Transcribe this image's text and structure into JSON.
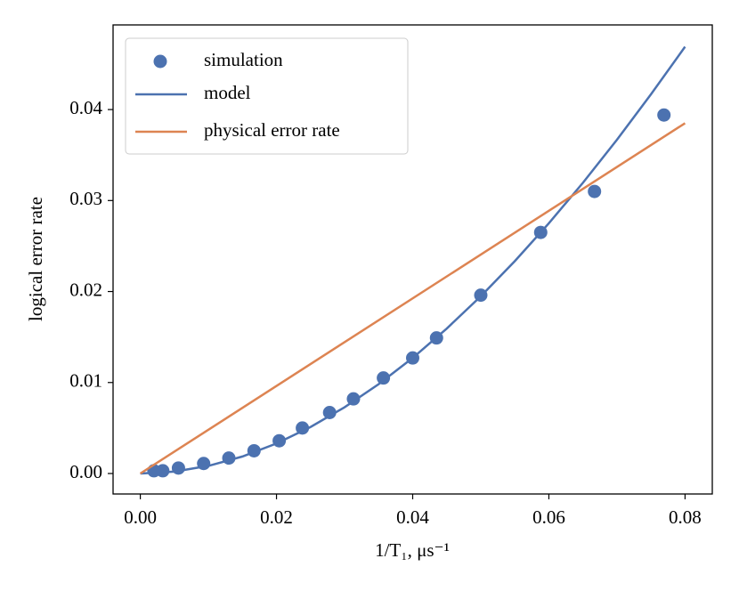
{
  "chart_data": {
    "type": "line",
    "xlabel": "1/T₁, μs⁻¹",
    "ylabel": "logical error rate",
    "xlim": [
      -0.004,
      0.084
    ],
    "ylim": [
      -0.00225,
      0.0493
    ],
    "xticks": [
      {
        "value": 0,
        "label": "0.00"
      },
      {
        "value": 0.02,
        "label": "0.02"
      },
      {
        "value": 0.04,
        "label": "0.04"
      },
      {
        "value": 0.06,
        "label": "0.06"
      },
      {
        "value": 0.08,
        "label": "0.08"
      }
    ],
    "yticks": [
      {
        "value": 0,
        "label": "0.00"
      },
      {
        "value": 0.01,
        "label": "0.01"
      },
      {
        "value": 0.02,
        "label": "0.02"
      },
      {
        "value": 0.03,
        "label": "0.03"
      },
      {
        "value": 0.04,
        "label": "0.04"
      }
    ],
    "legend": "upper left",
    "series": [
      {
        "name": "simulation",
        "type": "scatter",
        "color": "#4c72b0",
        "x": [
          0.002,
          0.0033,
          0.0056,
          0.0093,
          0.013,
          0.0167,
          0.0204,
          0.0238,
          0.0278,
          0.0313,
          0.0357,
          0.04,
          0.0435,
          0.05,
          0.0588,
          0.0667,
          0.0769
        ],
        "values": [
          0.0003,
          0.0003,
          0.0006,
          0.0011,
          0.0017,
          0.0025,
          0.0036,
          0.005,
          0.0067,
          0.0082,
          0.0105,
          0.0127,
          0.0149,
          0.0196,
          0.0265,
          0.031,
          0.0394
        ]
      },
      {
        "name": "model",
        "type": "line",
        "color": "#4c72b0",
        "x": [
          0,
          0.005,
          0.01,
          0.015,
          0.02,
          0.025,
          0.03,
          0.035,
          0.04,
          0.045,
          0.05,
          0.055,
          0.06,
          0.065,
          0.07,
          0.075,
          0.08
        ],
        "values": [
          0,
          0.00021,
          0.00084,
          0.00187,
          0.0033,
          0.00511,
          0.00728,
          0.00982,
          0.0127,
          0.01593,
          0.01948,
          0.02334,
          0.0275,
          0.03195,
          0.03668,
          0.04168,
          0.0469
        ]
      },
      {
        "name": "physical error rate",
        "type": "line",
        "color": "#dd8452",
        "x": [
          0,
          0.08
        ],
        "values": [
          0,
          0.0385
        ]
      }
    ]
  }
}
